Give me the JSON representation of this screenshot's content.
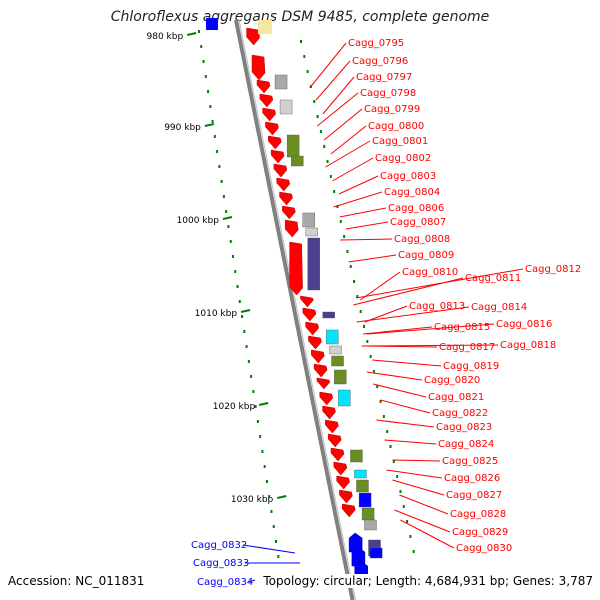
{
  "title": "Chloroflexus aggregans DSM 9485, complete genome",
  "footer": {
    "accession": "Accession: NC_011831",
    "topology": "Topology: circular; Length: 4,684,931 bp; Genes: 3,787"
  },
  "colors": {
    "forward_gene": "#ff0000",
    "reverse_gene": "#0000ff",
    "backbone": "#808080",
    "ticks": "#008000",
    "cog_purple": "#4b3f8f",
    "cog_olive": "#6b8e23",
    "cog_cyan": "#00e5ff",
    "cog_grey": "#a9a9a9"
  },
  "kbp_ticks": [
    "980 kbp",
    "990 kbp",
    "1000 kbp",
    "1010 kbp",
    "1020 kbp",
    "1030 kbp"
  ],
  "forward_labels": [
    "Cagg_0795",
    "Cagg_0796",
    "Cagg_0797",
    "Cagg_0798",
    "Cagg_0799",
    "Cagg_0800",
    "Cagg_0801",
    "Cagg_0802",
    "Cagg_0803",
    "Cagg_0804",
    "Cagg_0806",
    "Cagg_0807",
    "Cagg_0808",
    "Cagg_0809",
    "Cagg_0810",
    "Cagg_0811",
    "Cagg_0812",
    "Cagg_0813",
    "Cagg_0814",
    "Cagg_0815",
    "Cagg_0816",
    "Cagg_0817",
    "Cagg_0818",
    "Cagg_0819",
    "Cagg_0820",
    "Cagg_0821",
    "Cagg_0822",
    "Cagg_0823",
    "Cagg_0824",
    "Cagg_0825",
    "Cagg_0826",
    "Cagg_0827",
    "Cagg_0828",
    "Cagg_0829",
    "Cagg_0830"
  ],
  "reverse_labels": [
    "Cagg_0832",
    "Cagg_0833",
    "Cagg_0834"
  ]
}
